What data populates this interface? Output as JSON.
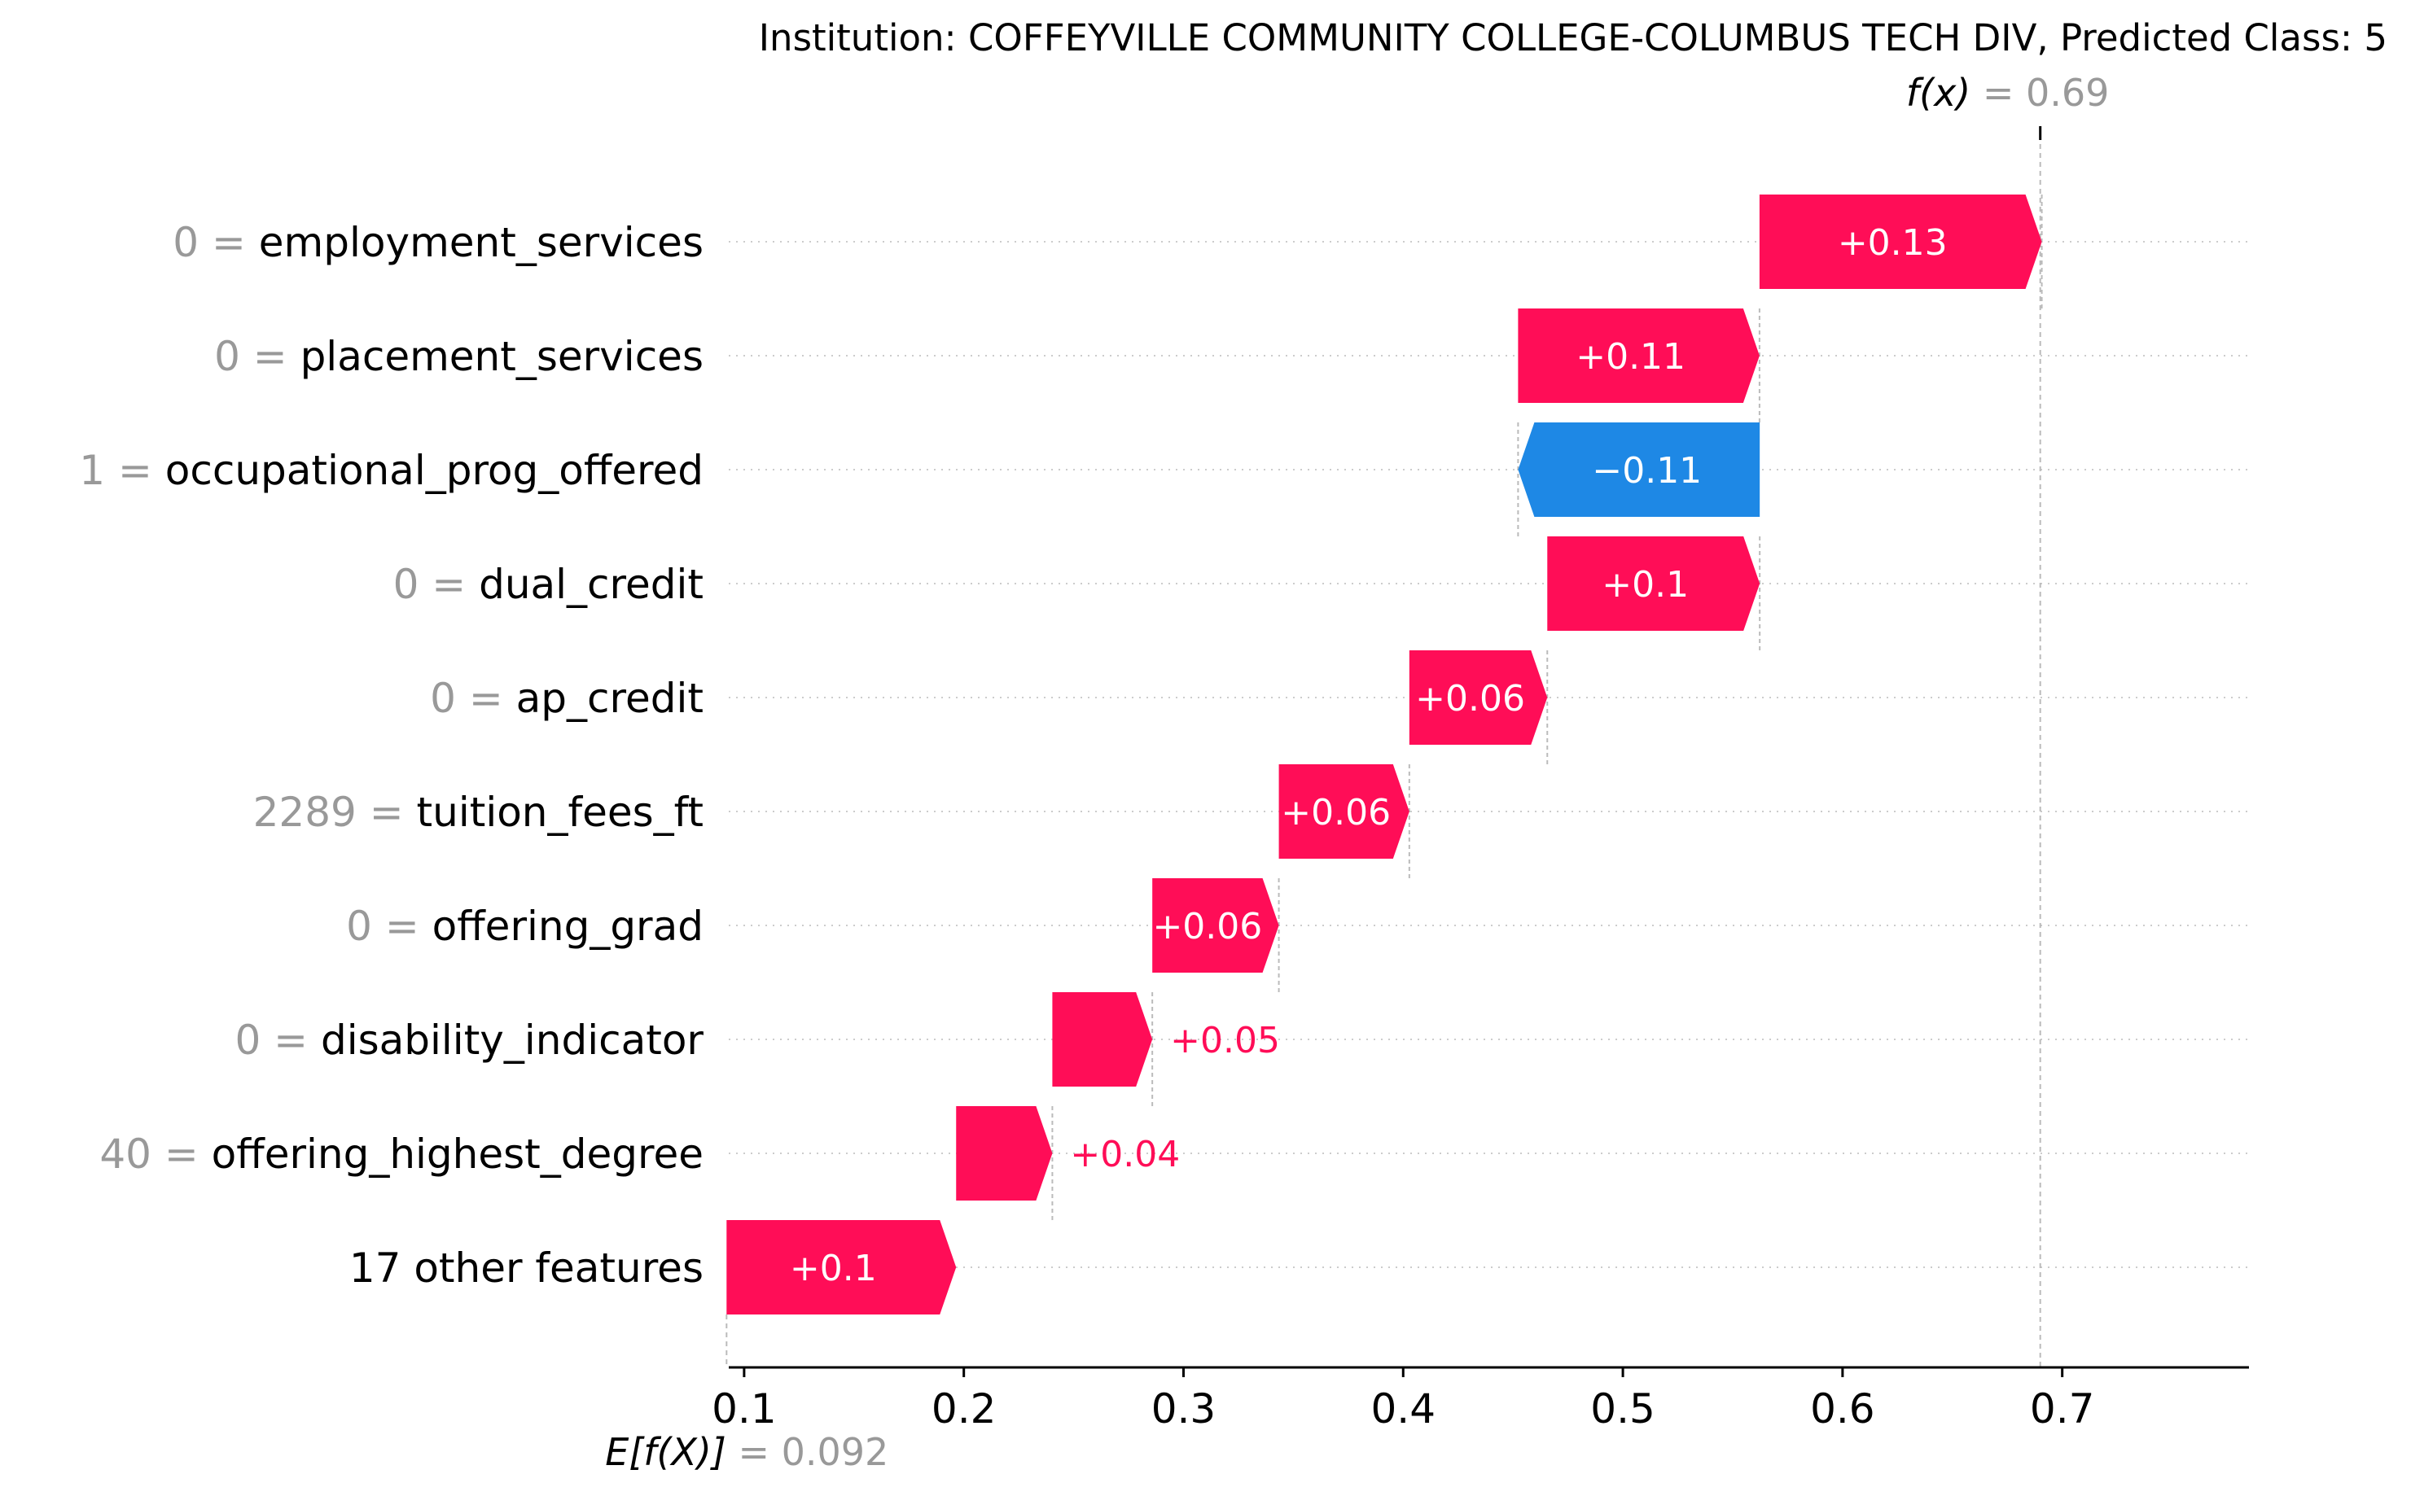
{
  "chart_data": {
    "type": "waterfall",
    "title": "Institution: COFFEYVILLE COMMUNITY COLLEGE-COLUMBUS TECH DIV, Predicted Class: 5",
    "fx": {
      "label_prefix": "f(x)",
      "value_text": " = 0.69",
      "value": 0.69
    },
    "base": {
      "label_prefix": "E[f(X)]",
      "value_text": " = 0.092",
      "value": 0.092
    },
    "xlim": [
      0.093,
      0.785
    ],
    "x_ticks": [
      0.1,
      0.2,
      0.3,
      0.4,
      0.5,
      0.6,
      0.7
    ],
    "x_tick_labels": [
      "0.1",
      "0.2",
      "0.3",
      "0.4",
      "0.5",
      "0.6",
      "0.7"
    ],
    "grid": "dotted horizontal row guides",
    "colors": {
      "positive": "#ff0d57",
      "negative": "#1e88e5",
      "muted": "#999999",
      "text": "#000000"
    },
    "features": [
      {
        "value": "0",
        "name": "employment_services",
        "contribution": 0.13,
        "label": "+0.13",
        "start": 0.5622,
        "end": 0.6907
      },
      {
        "value": "0",
        "name": "placement_services",
        "contribution": 0.11,
        "label": "+0.11",
        "start": 0.4523,
        "end": 0.5622
      },
      {
        "value": "1",
        "name": "occupational_prog_offered",
        "contribution": -0.11,
        "label": "−0.11",
        "start": 0.5623,
        "end": 0.4523
      },
      {
        "value": "0",
        "name": "dual_credit",
        "contribution": 0.1,
        "label": "+0.1",
        "start": 0.4656,
        "end": 0.5623
      },
      {
        "value": "0",
        "name": "ap_credit",
        "contribution": 0.06,
        "label": "+0.06",
        "start": 0.4028,
        "end": 0.4656
      },
      {
        "value": "2289",
        "name": "tuition_fees_ft",
        "contribution": 0.06,
        "label": "+0.06",
        "start": 0.3434,
        "end": 0.4028
      },
      {
        "value": "0",
        "name": "offering_grad",
        "contribution": 0.06,
        "label": "+0.06",
        "start": 0.2858,
        "end": 0.3434
      },
      {
        "value": "0",
        "name": "disability_indicator",
        "contribution": 0.05,
        "label": "+0.05",
        "start": 0.2403,
        "end": 0.2858
      },
      {
        "value": "40",
        "name": "offering_highest_degree",
        "contribution": 0.04,
        "label": "+0.04",
        "start": 0.1965,
        "end": 0.2403
      },
      {
        "value": "",
        "name": "17 other features",
        "contribution": 0.1,
        "label": "+0.1",
        "start": 0.092,
        "end": 0.1965
      }
    ]
  }
}
